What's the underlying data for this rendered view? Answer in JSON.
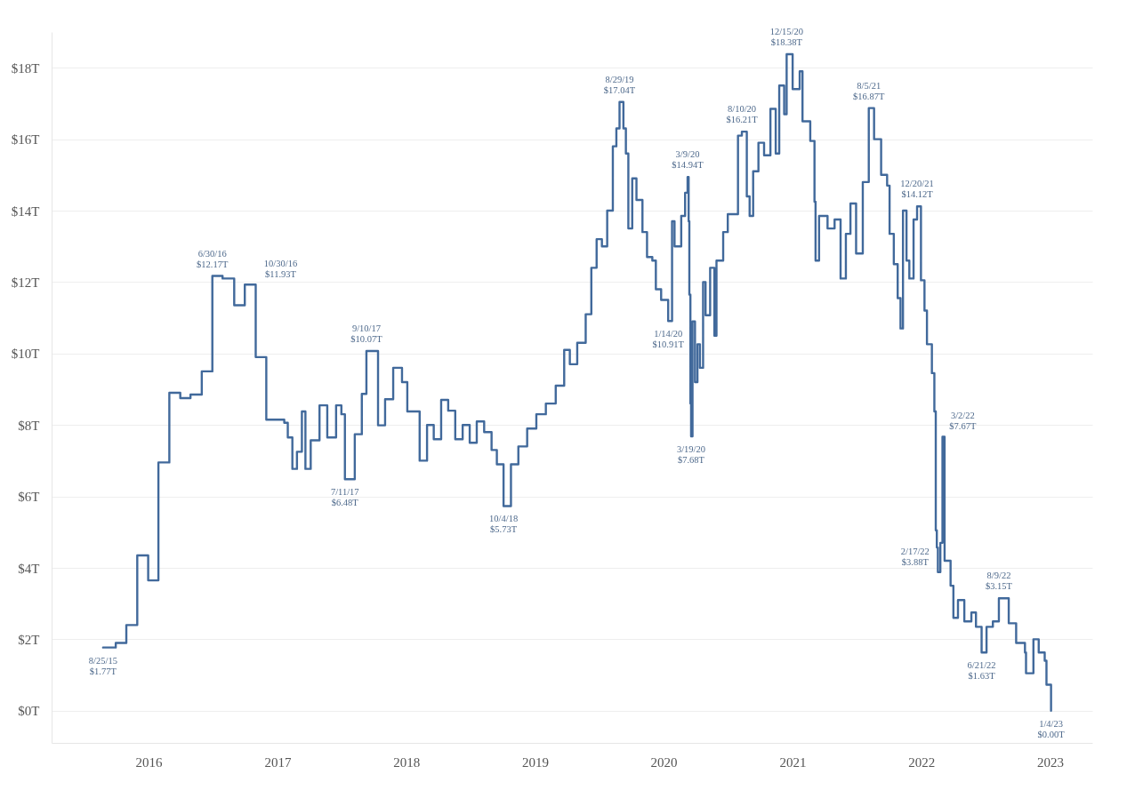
{
  "chart_data": {
    "type": "step",
    "xlim": [
      "2015-04",
      "2023-05"
    ],
    "ylim": [
      -0.9,
      19
    ],
    "xticks": [
      "2016",
      "2017",
      "2018",
      "2019",
      "2020",
      "2021",
      "2022",
      "2023"
    ],
    "yticks": [
      {
        "value": 0,
        "label": "$0T"
      },
      {
        "value": 2,
        "label": "$2T"
      },
      {
        "value": 4,
        "label": "$4T"
      },
      {
        "value": 6,
        "label": "$6T"
      },
      {
        "value": 8,
        "label": "$8T"
      },
      {
        "value": 10,
        "label": "$10T"
      },
      {
        "value": 12,
        "label": "$12T"
      },
      {
        "value": 14,
        "label": "$14T"
      },
      {
        "value": 16,
        "label": "$16T"
      },
      {
        "value": 18,
        "label": "$18T"
      }
    ],
    "grid": "y",
    "x": [
      "2015-08-25",
      "2015-09-30",
      "2015-10-30",
      "2015-11-30",
      "2015-12-31",
      "2016-01-29",
      "2016-02-29",
      "2016-03-31",
      "2016-04-29",
      "2016-05-31",
      "2016-06-30",
      "2016-07-29",
      "2016-08-31",
      "2016-09-30",
      "2016-10-30",
      "2016-10-31",
      "2016-11-30",
      "2017-01-20",
      "2017-01-30",
      "2017-02-12",
      "2017-02-25",
      "2017-03-11",
      "2017-03-21",
      "2017-04-05",
      "2017-04-30",
      "2017-05-22",
      "2017-06-16",
      "2017-07-01",
      "2017-07-11",
      "2017-08-08",
      "2017-08-28",
      "2017-09-10",
      "2017-10-13",
      "2017-11-02",
      "2017-11-25",
      "2017-12-20",
      "2018-01-04",
      "2018-02-08",
      "2018-03-01",
      "2018-03-20",
      "2018-04-10",
      "2018-04-30",
      "2018-05-20",
      "2018-06-10",
      "2018-06-30",
      "2018-07-20",
      "2018-08-10",
      "2018-08-31",
      "2018-09-15",
      "2018-10-04",
      "2018-10-25",
      "2018-11-15",
      "2018-12-10",
      "2019-01-05",
      "2019-02-01",
      "2019-03-01",
      "2019-03-25",
      "2019-04-10",
      "2019-05-01",
      "2019-05-25",
      "2019-06-10",
      "2019-06-25",
      "2019-07-10",
      "2019-07-25",
      "2019-08-10",
      "2019-08-20",
      "2019-08-29",
      "2019-09-09",
      "2019-09-16",
      "2019-09-23",
      "2019-10-04",
      "2019-10-16",
      "2019-11-02",
      "2019-11-15",
      "2019-11-30",
      "2019-12-10",
      "2019-12-25",
      "2020-01-14",
      "2020-01-25",
      "2020-02-01",
      "2020-02-20",
      "2020-03-02",
      "2020-03-09",
      "2020-03-12",
      "2020-03-14",
      "2020-03-17",
      "2020-03-19",
      "2020-03-23",
      "2020-03-30",
      "2020-04-06",
      "2020-04-13",
      "2020-04-22",
      "2020-04-29",
      "2020-05-12",
      "2020-05-24",
      "2020-05-30",
      "2020-06-18",
      "2020-07-01",
      "2020-07-30",
      "2020-08-10",
      "2020-08-24",
      "2020-09-01",
      "2020-09-11",
      "2020-09-26",
      "2020-10-12",
      "2020-10-30",
      "2020-11-14",
      "2020-11-24",
      "2020-12-08",
      "2020-12-15",
      "2021-01-01",
      "2021-01-21",
      "2021-01-29",
      "2021-02-20",
      "2021-03-04",
      "2021-03-07",
      "2021-03-17",
      "2021-04-10",
      "2021-04-30",
      "2021-05-17",
      "2021-06-01",
      "2021-06-14",
      "2021-06-30",
      "2021-07-19",
      "2021-08-05",
      "2021-08-20",
      "2021-09-09",
      "2021-09-26",
      "2021-10-03",
      "2021-10-15",
      "2021-10-26",
      "2021-11-03",
      "2021-11-10",
      "2021-11-20",
      "2021-11-28",
      "2021-12-10",
      "2021-12-20",
      "2021-12-31",
      "2022-01-10",
      "2022-01-17",
      "2022-01-31",
      "2022-02-07",
      "2022-02-11",
      "2022-02-14",
      "2022-02-17",
      "2022-02-24",
      "2022-03-02",
      "2022-03-08",
      "2022-03-25",
      "2022-04-02",
      "2022-04-15",
      "2022-05-03",
      "2022-05-23",
      "2022-06-05",
      "2022-06-21",
      "2022-07-05",
      "2022-07-23",
      "2022-08-09",
      "2022-09-06",
      "2022-09-27",
      "2022-10-22",
      "2022-10-25",
      "2022-11-15",
      "2022-11-30",
      "2022-12-17",
      "2022-12-22",
      "2023-01-04"
    ],
    "series": [
      {
        "color": "#41699b",
        "values": [
          1.77,
          1.9,
          2.4,
          4.35,
          3.65,
          6.95,
          8.9,
          8.75,
          8.85,
          9.5,
          12.17,
          12.1,
          11.35,
          11.93,
          11.93,
          9.9,
          8.15,
          8.06,
          7.65,
          6.77,
          7.25,
          8.38,
          6.77,
          7.57,
          8.55,
          7.65,
          8.55,
          8.3,
          6.48,
          7.74,
          8.87,
          10.07,
          7.99,
          8.72,
          9.6,
          9.2,
          8.38,
          7.0,
          8.0,
          7.6,
          8.7,
          8.4,
          7.6,
          8.0,
          7.5,
          8.1,
          7.8,
          7.3,
          6.9,
          5.73,
          6.9,
          7.4,
          7.9,
          8.3,
          8.6,
          9.1,
          10.1,
          9.7,
          10.3,
          11.1,
          12.4,
          13.2,
          13.0,
          14.0,
          15.8,
          16.3,
          17.04,
          16.3,
          15.6,
          13.5,
          14.9,
          14.3,
          13.4,
          12.7,
          12.6,
          11.8,
          11.5,
          10.91,
          13.7,
          13.0,
          13.85,
          14.5,
          14.94,
          13.7,
          11.65,
          8.6,
          7.68,
          10.9,
          9.2,
          10.26,
          9.6,
          12.0,
          11.07,
          12.4,
          10.5,
          12.6,
          13.4,
          13.9,
          16.1,
          16.21,
          14.4,
          13.85,
          15.1,
          15.9,
          15.55,
          16.85,
          15.6,
          17.5,
          16.7,
          18.38,
          17.4,
          17.9,
          16.5,
          15.95,
          14.25,
          12.6,
          13.85,
          13.5,
          13.75,
          12.1,
          13.35,
          14.2,
          12.8,
          14.8,
          16.87,
          16.0,
          15.0,
          14.7,
          13.35,
          12.5,
          11.55,
          10.7,
          14.0,
          12.6,
          12.1,
          13.75,
          14.12,
          12.05,
          11.2,
          10.26,
          9.45,
          8.38,
          5.05,
          4.57,
          3.88,
          4.7,
          7.67,
          4.2,
          3.5,
          2.6,
          3.1,
          2.5,
          2.75,
          2.35,
          1.63,
          2.35,
          2.5,
          3.15,
          2.45,
          1.9,
          1.63,
          1.05,
          2.0,
          1.63,
          1.4,
          0.73,
          0.0
        ]
      }
    ],
    "annotations": [
      {
        "text": "8/25/15\n$1.77T",
        "x": "2015-08-25",
        "y": 1.77
      },
      {
        "text": "6/30/16\n$12.17T",
        "x": "2016-06-30",
        "y": 12.17
      },
      {
        "text": "10/30/16\n$11.93T",
        "x": "2016-10-30",
        "y": 11.93
      },
      {
        "text": "7/11/17\n$6.48T",
        "x": "2017-07-11",
        "y": 6.48
      },
      {
        "text": "9/10/17\n$10.07T",
        "x": "2017-09-10",
        "y": 10.07
      },
      {
        "text": "10/4/18\n$5.73T",
        "x": "2018-10-04",
        "y": 5.73
      },
      {
        "text": "8/29/19\n$17.04T",
        "x": "2019-08-29",
        "y": 17.04
      },
      {
        "text": "1/14/20\n$10.91T",
        "x": "2020-01-14",
        "y": 10.91
      },
      {
        "text": "3/9/20\n$14.94T",
        "x": "2020-03-09",
        "y": 14.94
      },
      {
        "text": "3/19/20\n$7.68T",
        "x": "2020-03-19",
        "y": 7.68
      },
      {
        "text": "8/10/20\n$16.21T",
        "x": "2020-08-10",
        "y": 16.21
      },
      {
        "text": "12/15/20\n$18.38T",
        "x": "2020-12-15",
        "y": 18.38
      },
      {
        "text": "8/5/21\n$16.87T",
        "x": "2021-08-05",
        "y": 16.87
      },
      {
        "text": "12/20/21\n$14.12T",
        "x": "2021-12-20",
        "y": 14.12
      },
      {
        "text": "3/2/22\n$7.67T",
        "x": "2022-03-02",
        "y": 7.67
      },
      {
        "text": "2/17/22\n$3.88T",
        "x": "2022-02-17",
        "y": 3.88
      },
      {
        "text": "6/21/22\n$1.63T",
        "x": "2022-06-21",
        "y": 1.63
      },
      {
        "text": "8/9/22\n$3.15T",
        "x": "2022-08-09",
        "y": 3.15
      },
      {
        "text": "1/4/23\n$0.00T",
        "x": "2023-01-04",
        "y": 0.0
      }
    ]
  }
}
